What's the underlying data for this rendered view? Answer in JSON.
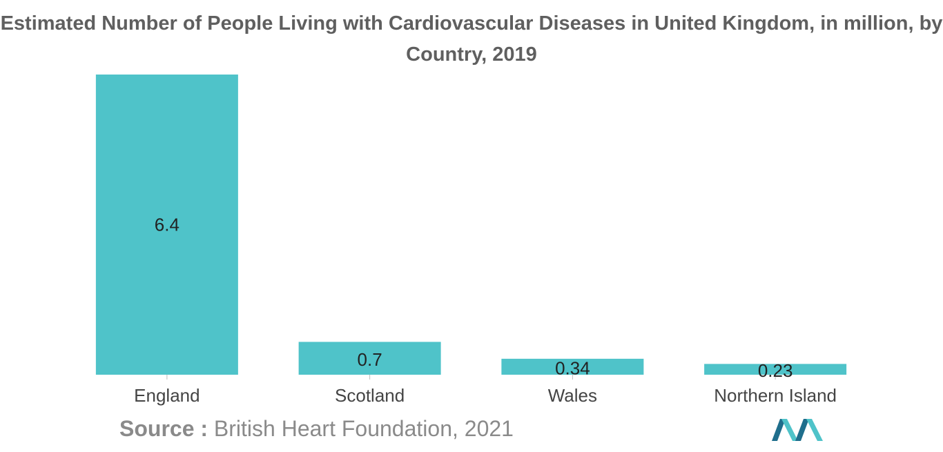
{
  "chart_data": {
    "type": "bar",
    "title": "Estimated Number of People Living with Cardiovascular Diseases in United Kingdom, in million, by Country, 2019",
    "categories": [
      "England",
      "Scotland",
      "Wales",
      "Northern Island"
    ],
    "values": [
      6.4,
      0.7,
      0.34,
      0.23
    ],
    "data_labels": [
      "6.4",
      "0.7",
      "0.34",
      "0.23"
    ],
    "xlabel": "",
    "ylabel": "",
    "ylim": [
      0,
      6.4
    ],
    "grid": false,
    "bar_color": "#4fc3c9"
  },
  "source": {
    "label": "Source :",
    "text": "British Heart Foundation, 2021"
  },
  "colors": {
    "title": "#5f5f5f",
    "logo_dark": "#1f6e8c",
    "logo_light": "#4fc3c9"
  }
}
